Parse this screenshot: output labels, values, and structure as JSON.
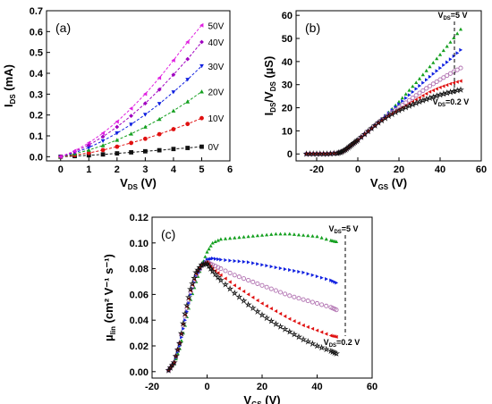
{
  "colors": {
    "black": "#111111",
    "red": "#e01010",
    "green": "#15a020",
    "blue": "#1020e0",
    "magenta": "#e020e0",
    "purple": "#a000c0",
    "pink": "#b070b0"
  },
  "chart_data": [
    {
      "type": "scatter",
      "panel_label": "(a)",
      "xlabel_main": "V",
      "xlabel_sub": "DS",
      "xlabel_unit": " (V)",
      "ylabel_main": "I",
      "ylabel_sub": "DS",
      "ylabel_unit": " (mA)",
      "xlim": [
        -0.5,
        6
      ],
      "ylim": [
        -0.02,
        0.7
      ],
      "xticks": [
        0,
        1,
        2,
        3,
        4,
        5,
        6
      ],
      "yticks": [
        0.0,
        0.1,
        0.2,
        0.3,
        0.4,
        0.5,
        0.6,
        0.7
      ],
      "x": [
        0,
        0.5,
        1,
        1.5,
        2,
        2.5,
        3,
        3.5,
        4,
        4.5,
        5
      ],
      "series": [
        {
          "label": "0V",
          "color": "black",
          "marker": "square",
          "y": [
            0,
            0.003,
            0.007,
            0.011,
            0.016,
            0.021,
            0.026,
            0.031,
            0.037,
            0.042,
            0.048
          ]
        },
        {
          "label": "10V",
          "color": "red",
          "marker": "circle",
          "y": [
            0,
            0.008,
            0.018,
            0.032,
            0.048,
            0.066,
            0.086,
            0.108,
            0.132,
            0.157,
            0.185
          ]
        },
        {
          "label": "20V",
          "color": "green",
          "marker": "triangle-up",
          "y": [
            0,
            0.014,
            0.032,
            0.054,
            0.08,
            0.11,
            0.143,
            0.18,
            0.22,
            0.264,
            0.312
          ]
        },
        {
          "label": "30V",
          "color": "blue",
          "marker": "triangle-down",
          "y": [
            0,
            0.019,
            0.044,
            0.076,
            0.113,
            0.155,
            0.202,
            0.254,
            0.31,
            0.37,
            0.435
          ]
        },
        {
          "label": "40V",
          "color": "purple",
          "marker": "diamond",
          "y": [
            0,
            0.024,
            0.056,
            0.096,
            0.143,
            0.196,
            0.256,
            0.322,
            0.393,
            0.468,
            0.55
          ]
        },
        {
          "label": "50V",
          "color": "magenta",
          "marker": "triangle-left",
          "y": [
            0,
            0.028,
            0.066,
            0.113,
            0.168,
            0.231,
            0.301,
            0.378,
            0.462,
            0.55,
            0.63
          ]
        }
      ]
    },
    {
      "type": "scatter",
      "panel_label": "(b)",
      "xlabel_main": "V",
      "xlabel_sub": "GS",
      "xlabel_unit": " (V)",
      "ylabel_main": "I",
      "ylabel_sub": "DS",
      "ylabel_mid": "/V",
      "ylabel_sub2": "DS",
      "ylabel_unit": " (µS)",
      "xlim": [
        -30,
        60
      ],
      "ylim": [
        -3,
        62
      ],
      "xticks": [
        -20,
        0,
        20,
        40,
        60
      ],
      "yticks": [
        0,
        10,
        20,
        30,
        40,
        50,
        60
      ],
      "annotation_top": {
        "main": "V",
        "sub": "DS",
        "rest": "=5 V"
      },
      "annotation_bottom": {
        "main": "V",
        "sub": "DS",
        "rest": "=0.2 V"
      },
      "x": [
        -25,
        -20,
        -15,
        -10,
        -8,
        -6,
        -4,
        -2,
        0,
        5,
        10,
        15,
        20,
        25,
        30,
        35,
        40,
        45,
        50
      ],
      "series": [
        {
          "label": "V_DS=5 V",
          "color": "green",
          "marker": "triangle-up",
          "y": [
            0,
            0,
            0,
            0.3,
            0.8,
            1.8,
            3.2,
            4.6,
            6.0,
            9.8,
            13.8,
            18.0,
            22.6,
            27.6,
            32.6,
            37.8,
            43.0,
            48.4,
            54.0
          ]
        },
        {
          "label": "",
          "color": "blue",
          "marker": "triangle-right",
          "y": [
            0,
            0,
            0,
            0.3,
            0.8,
            1.8,
            3.2,
            4.6,
            6.0,
            9.8,
            13.7,
            17.7,
            21.6,
            25.5,
            29.5,
            33.4,
            37.2,
            41.0,
            45.0
          ]
        },
        {
          "label": "",
          "color": "pink",
          "marker": "circle-open",
          "y": [
            0,
            0,
            0,
            0.3,
            0.8,
            1.8,
            3.2,
            4.6,
            6.0,
            9.8,
            13.6,
            17.0,
            20.1,
            23.2,
            26.4,
            29.4,
            32.2,
            34.8,
            37.2
          ]
        },
        {
          "label": "",
          "color": "red",
          "marker": "triangle-left",
          "y": [
            0,
            0,
            0,
            0.3,
            0.8,
            1.8,
            3.2,
            4.6,
            6.0,
            9.8,
            13.4,
            16.6,
            19.2,
            21.8,
            24.4,
            26.9,
            28.8,
            30.4,
            31.6
          ]
        },
        {
          "label": "V_DS=0.2 V",
          "color": "black",
          "marker": "star-open",
          "y": [
            0,
            0,
            0,
            0.3,
            0.8,
            1.8,
            3.2,
            4.6,
            6.0,
            9.8,
            13.5,
            16.4,
            18.8,
            20.8,
            22.6,
            24.2,
            25.6,
            26.8,
            27.8
          ]
        }
      ]
    },
    {
      "type": "scatter",
      "panel_label": "(c)",
      "xlabel_main": "V",
      "xlabel_sub": "GS",
      "xlabel_unit": " (V)",
      "ylabel_main": "µ",
      "ylabel_sub": "lin",
      "ylabel_unit": " (cm² V⁻¹ s⁻¹)",
      "xlim": [
        -20,
        60
      ],
      "ylim": [
        -0.005,
        0.12
      ],
      "xticks": [
        -20,
        0,
        20,
        40,
        60
      ],
      "yticks": [
        0.0,
        0.02,
        0.04,
        0.06,
        0.08,
        0.1,
        0.12
      ],
      "annotation_top": {
        "main": "V",
        "sub": "DS",
        "rest": "=5 V"
      },
      "annotation_bottom": {
        "main": "V",
        "sub": "DS",
        "rest": "=0.2 V"
      },
      "x": [
        -14,
        -12,
        -10,
        -8,
        -6,
        -4,
        -2,
        0,
        2,
        5,
        10,
        15,
        20,
        25,
        30,
        35,
        40,
        45,
        47
      ],
      "series": [
        {
          "label": "V_DS=5 V",
          "color": "green",
          "marker": "triangle-up",
          "y": [
            0.001,
            0.006,
            0.018,
            0.036,
            0.056,
            0.07,
            0.082,
            0.093,
            0.1,
            0.103,
            0.104,
            0.105,
            0.106,
            0.107,
            0.107,
            0.106,
            0.105,
            0.102,
            0.101
          ]
        },
        {
          "label": "",
          "color": "blue",
          "marker": "triangle-right",
          "y": [
            0.001,
            0.006,
            0.02,
            0.04,
            0.06,
            0.074,
            0.082,
            0.087,
            0.088,
            0.087,
            0.086,
            0.085,
            0.083,
            0.081,
            0.079,
            0.077,
            0.074,
            0.071,
            0.069
          ]
        },
        {
          "label": "",
          "color": "pink",
          "marker": "circle-open",
          "y": [
            0.001,
            0.007,
            0.022,
            0.043,
            0.062,
            0.075,
            0.082,
            0.085,
            0.083,
            0.08,
            0.075,
            0.071,
            0.067,
            0.063,
            0.059,
            0.056,
            0.053,
            0.05,
            0.048
          ]
        },
        {
          "label": "",
          "color": "red",
          "marker": "triangle-left",
          "y": [
            0.001,
            0.007,
            0.022,
            0.044,
            0.063,
            0.076,
            0.083,
            0.085,
            0.08,
            0.075,
            0.067,
            0.06,
            0.053,
            0.047,
            0.041,
            0.036,
            0.032,
            0.028,
            0.027
          ]
        },
        {
          "label": "V_DS=0.2 V",
          "color": "black",
          "marker": "star-open",
          "y": [
            0.001,
            0.007,
            0.022,
            0.045,
            0.064,
            0.077,
            0.083,
            0.084,
            0.078,
            0.071,
            0.061,
            0.052,
            0.044,
            0.037,
            0.031,
            0.025,
            0.02,
            0.016,
            0.014
          ]
        }
      ]
    }
  ]
}
